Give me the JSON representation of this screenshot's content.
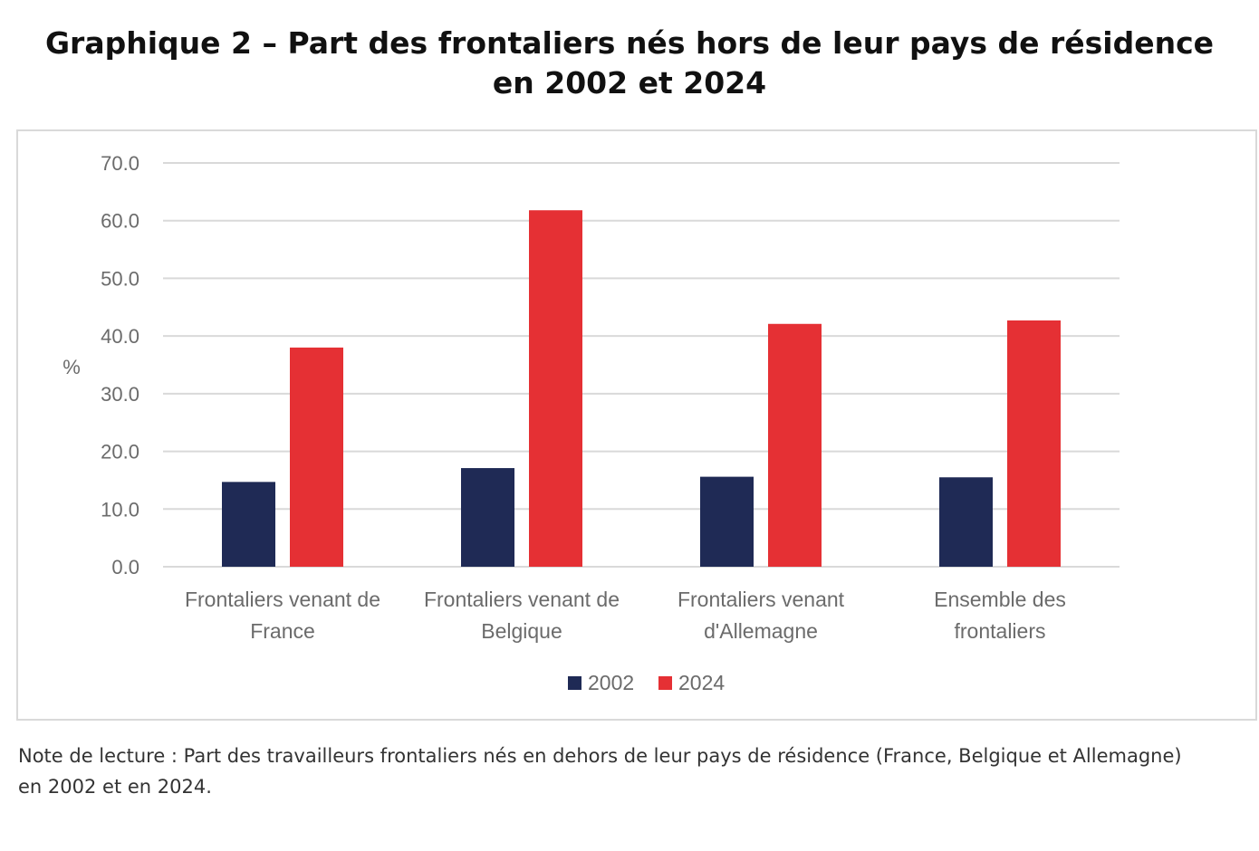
{
  "title": {
    "line1": "Graphique 2 – Part des frontaliers nés hors de leur pays de résidence",
    "line2": "en 2002 et 2024"
  },
  "note": {
    "line1": "Note de lecture : Part des travailleurs frontaliers nés en dehors de leur pays de résidence (France, Belgique et Allemagne)",
    "line2": "en 2002 et en 2024."
  },
  "chart_data": {
    "type": "bar",
    "title": "",
    "xlabel": "",
    "ylabel": "%",
    "ylim": [
      0,
      70
    ],
    "yticks": [
      0,
      10,
      20,
      30,
      40,
      50,
      60,
      70
    ],
    "ytick_labels": [
      "0.0",
      "10.0",
      "20.0",
      "30.0",
      "40.0",
      "50.0",
      "60.0",
      "70.0"
    ],
    "grid": true,
    "legend": "bottom-center",
    "categories": [
      [
        "Frontaliers venant de",
        "France"
      ],
      [
        "Frontaliers venant de",
        "Belgique"
      ],
      [
        "Frontaliers venant",
        "d'Allemagne"
      ],
      [
        "Ensemble des",
        "frontaliers"
      ]
    ],
    "series": [
      {
        "name": "2002",
        "color": "#1f2a55",
        "values": [
          14.7,
          17.1,
          15.6,
          15.5
        ]
      },
      {
        "name": "2024",
        "color": "#e53034",
        "values": [
          38.0,
          61.8,
          42.1,
          42.7
        ]
      }
    ],
    "colors": {
      "grid": "#d9d9d9",
      "axis": "#d9d9d9",
      "tick_text": "#6b6b6b"
    }
  }
}
